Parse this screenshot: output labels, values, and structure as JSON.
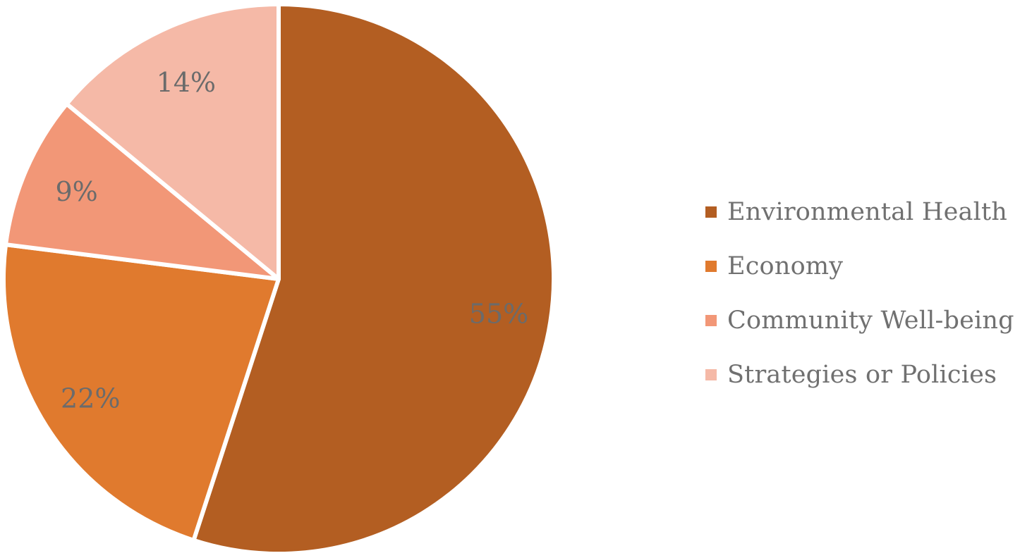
{
  "chart_data": {
    "type": "pie",
    "categories": [
      "Environmental Health",
      "Economy",
      "Community Well-being",
      "Strategies or Policies"
    ],
    "values": [
      55,
      22,
      9,
      14
    ],
    "data_labels": [
      "55%",
      "22%",
      "9%",
      "14%"
    ],
    "colors": [
      "#b35e22",
      "#e07a2e",
      "#f29777",
      "#f5b9a7"
    ],
    "start_angle_deg": 0,
    "direction": "clockwise",
    "legend": {
      "position": "right",
      "entries": [
        "Environmental Health",
        "Economy",
        "Community Well-being",
        "Strategies or Policies"
      ]
    },
    "title": ""
  }
}
